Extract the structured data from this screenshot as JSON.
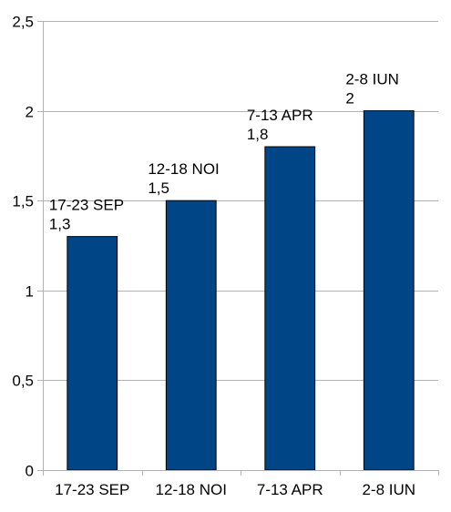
{
  "chart_data": {
    "type": "bar",
    "categories": [
      "17-23 SEP",
      "12-18 NOI",
      "7-13 APR",
      "2-8 IUN"
    ],
    "values": [
      1.3,
      1.5,
      1.8,
      2
    ],
    "value_labels": [
      "1,3",
      "1,5",
      "1,8",
      "2"
    ],
    "title": "",
    "xlabel": "",
    "ylabel": "",
    "ylim": [
      0,
      2.5
    ],
    "yticks": [
      0,
      0.5,
      1,
      1.5,
      2,
      2.5
    ],
    "ytick_labels": [
      "0",
      "0,5",
      "1",
      "1,5",
      "2",
      "2,5"
    ],
    "grid": true,
    "legend": "none",
    "bar_color": "#004586",
    "grid_color": "#b3b3b3"
  }
}
